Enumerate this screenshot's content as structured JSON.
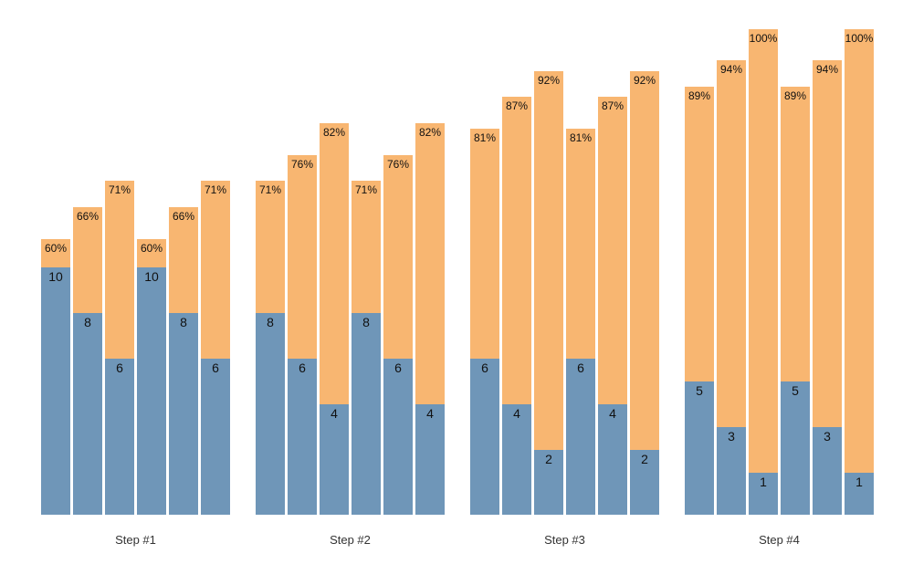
{
  "chart_data": {
    "type": "bar",
    "subtype": "grouped_stacked",
    "title": "",
    "legend_position": "none",
    "gridlines": false,
    "y_axis_visible": false,
    "background_color": "#ffffff",
    "colors": {
      "base_segment": "#6f96b8",
      "top_segment": "#f8b671",
      "in_bar_text": "#111111",
      "axis_label_text": "#333333"
    },
    "xlabel": "",
    "ylabel": "",
    "categories": [
      "Step #1",
      "Step #2",
      "Step #3",
      "Step #4"
    ],
    "groups": [
      {
        "label": "Step #1",
        "bars": [
          {
            "count": 10,
            "percent_label": "60%",
            "percent": 60
          },
          {
            "count": 8,
            "percent_label": "66%",
            "percent": 66
          },
          {
            "count": 6,
            "percent_label": "71%",
            "percent": 71
          },
          {
            "count": 10,
            "percent_label": "60%",
            "percent": 60
          },
          {
            "count": 8,
            "percent_label": "66%",
            "percent": 66
          },
          {
            "count": 6,
            "percent_label": "71%",
            "percent": 71
          }
        ]
      },
      {
        "label": "Step #2",
        "bars": [
          {
            "count": 8,
            "percent_label": "71%",
            "percent": 71
          },
          {
            "count": 6,
            "percent_label": "76%",
            "percent": 76
          },
          {
            "count": 4,
            "percent_label": "82%",
            "percent": 82
          },
          {
            "count": 8,
            "percent_label": "71%",
            "percent": 71
          },
          {
            "count": 6,
            "percent_label": "76%",
            "percent": 76
          },
          {
            "count": 4,
            "percent_label": "82%",
            "percent": 82
          }
        ]
      },
      {
        "label": "Step #3",
        "bars": [
          {
            "count": 6,
            "percent_label": "81%",
            "percent": 81
          },
          {
            "count": 4,
            "percent_label": "87%",
            "percent": 87
          },
          {
            "count": 2,
            "percent_label": "92%",
            "percent": 92
          },
          {
            "count": 6,
            "percent_label": "81%",
            "percent": 81
          },
          {
            "count": 4,
            "percent_label": "87%",
            "percent": 87
          },
          {
            "count": 2,
            "percent_label": "92%",
            "percent": 92
          }
        ]
      },
      {
        "label": "Step #4",
        "bars": [
          {
            "count": 5,
            "percent_label": "89%",
            "percent": 89
          },
          {
            "count": 3,
            "percent_label": "94%",
            "percent": 94
          },
          {
            "count": 1,
            "percent_label": "100%",
            "percent": 100
          },
          {
            "count": 5,
            "percent_label": "89%",
            "percent": 89
          },
          {
            "count": 3,
            "percent_label": "94%",
            "percent": 94
          },
          {
            "count": 1,
            "percent_label": "100%",
            "percent": 100
          }
        ]
      }
    ]
  }
}
